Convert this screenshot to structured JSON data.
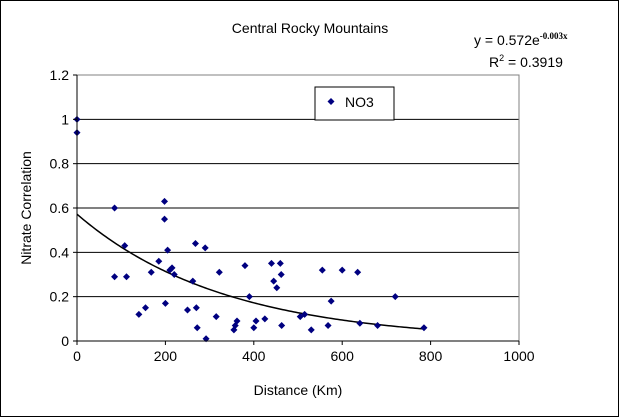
{
  "chart_data": {
    "type": "scatter",
    "title": "Central Rocky Mountains",
    "xlabel": "Distance (Km)",
    "ylabel": "Nitrate Correlation",
    "xlim": [
      0,
      1000
    ],
    "ylim": [
      0,
      1.2
    ],
    "xticks": [
      "0",
      "200",
      "400",
      "600",
      "800",
      "1000"
    ],
    "yticks": [
      "0",
      "0.2",
      "0.4",
      "0.6",
      "0.8",
      "1",
      "1.2"
    ],
    "grid": "horizontal",
    "legend": {
      "placement": "top-center",
      "entries": [
        "NO3"
      ]
    },
    "series": [
      {
        "name": "NO3",
        "color": "#000080",
        "marker": "diamond",
        "points": [
          [
            0,
            1.0
          ],
          [
            0,
            0.94
          ],
          [
            85,
            0.6
          ],
          [
            85,
            0.29
          ],
          [
            108,
            0.43
          ],
          [
            112,
            0.29
          ],
          [
            140,
            0.12
          ],
          [
            155,
            0.15
          ],
          [
            168,
            0.31
          ],
          [
            185,
            0.36
          ],
          [
            198,
            0.63
          ],
          [
            198,
            0.55
          ],
          [
            200,
            0.17
          ],
          [
            205,
            0.41
          ],
          [
            210,
            0.32
          ],
          [
            215,
            0.33
          ],
          [
            220,
            0.3
          ],
          [
            250,
            0.14
          ],
          [
            262,
            0.27
          ],
          [
            268,
            0.44
          ],
          [
            270,
            0.15
          ],
          [
            272,
            0.06
          ],
          [
            290,
            0.42
          ],
          [
            292,
            0.01
          ],
          [
            315,
            0.11
          ],
          [
            322,
            0.31
          ],
          [
            355,
            0.05
          ],
          [
            358,
            0.07
          ],
          [
            362,
            0.09
          ],
          [
            380,
            0.34
          ],
          [
            390,
            0.2
          ],
          [
            400,
            0.06
          ],
          [
            405,
            0.09
          ],
          [
            425,
            0.1
          ],
          [
            440,
            0.35
          ],
          [
            445,
            0.27
          ],
          [
            452,
            0.24
          ],
          [
            460,
            0.35
          ],
          [
            462,
            0.3
          ],
          [
            463,
            0.07
          ],
          [
            505,
            0.11
          ],
          [
            515,
            0.12
          ],
          [
            530,
            0.05
          ],
          [
            555,
            0.32
          ],
          [
            568,
            0.07
          ],
          [
            575,
            0.18
          ],
          [
            600,
            0.32
          ],
          [
            635,
            0.31
          ],
          [
            640,
            0.08
          ],
          [
            680,
            0.07
          ],
          [
            720,
            0.2
          ],
          [
            785,
            0.06
          ]
        ]
      }
    ],
    "trendline": {
      "type": "exponential",
      "a": 0.572,
      "b": -0.003,
      "x_range": [
        0,
        785
      ],
      "equation_prefix": "y = 0.572e",
      "equation_exponent": "-0.003x",
      "r2_prefix": "R",
      "r2_sup": "2",
      "r2_suffix": " = 0.3919"
    }
  }
}
